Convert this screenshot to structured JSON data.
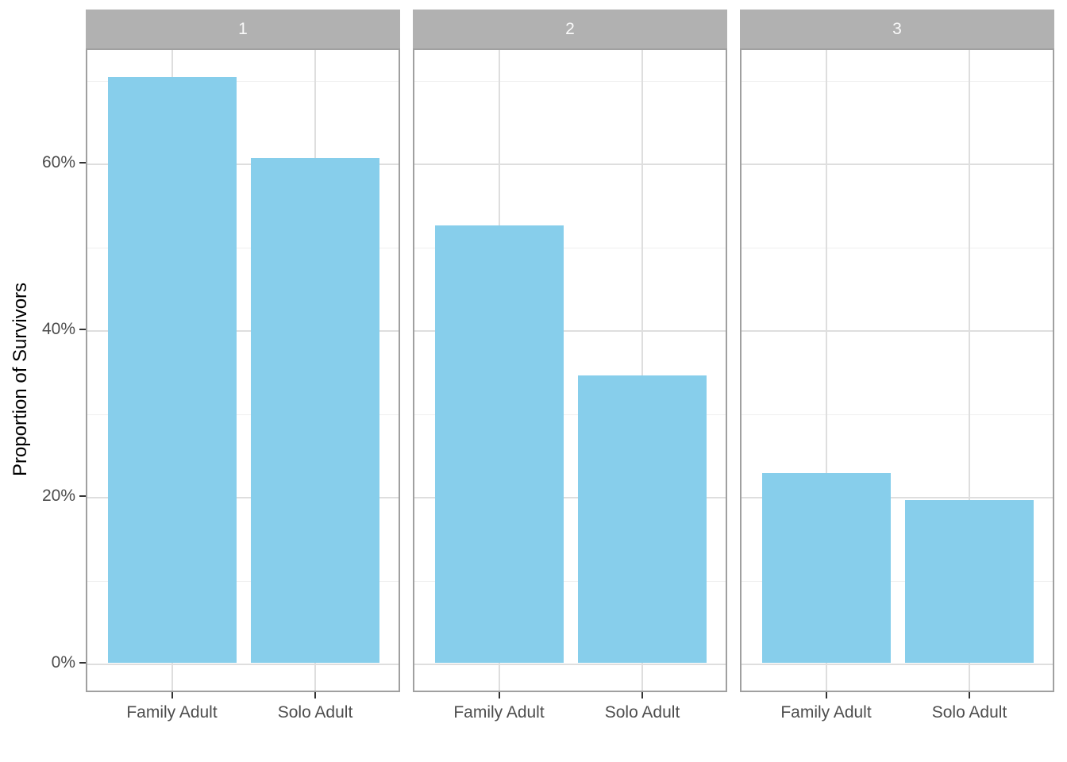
{
  "figure": {
    "background": "#ffffff"
  },
  "chart_data": {
    "type": "bar",
    "title": "",
    "xlabel": "",
    "ylabel": "Proportion of Survivors",
    "categories": [
      "Family Adult",
      "Solo Adult"
    ],
    "facets": [
      {
        "label": "1",
        "values_pct": [
          70.3,
          60.6
        ]
      },
      {
        "label": "2",
        "values_pct": [
          52.5,
          34.5
        ]
      },
      {
        "label": "3",
        "values_pct": [
          22.8,
          19.5
        ]
      }
    ],
    "ylim_pct": [
      0,
      73.7
    ],
    "yticks": [
      {
        "value_pct": 0,
        "label": "0%"
      },
      {
        "value_pct": 20,
        "label": "20%"
      },
      {
        "value_pct": 40,
        "label": "40%"
      },
      {
        "value_pct": 60,
        "label": "60%"
      }
    ],
    "yticks_minor_pct": [
      10,
      30,
      50,
      70
    ],
    "grid": "major and minor horizontal, major vertical at category centers",
    "legend": "none",
    "colors": {
      "bar_fill": "#87CEEB",
      "strip_fill": "#b1b1b1",
      "strip_text": "#fafafa",
      "panel_border": "#a0a0a0",
      "grid_major": "#dedede",
      "grid_minor": "#efefef",
      "tick_mark": "#333333",
      "axis_text": "#4d4d4d"
    }
  }
}
